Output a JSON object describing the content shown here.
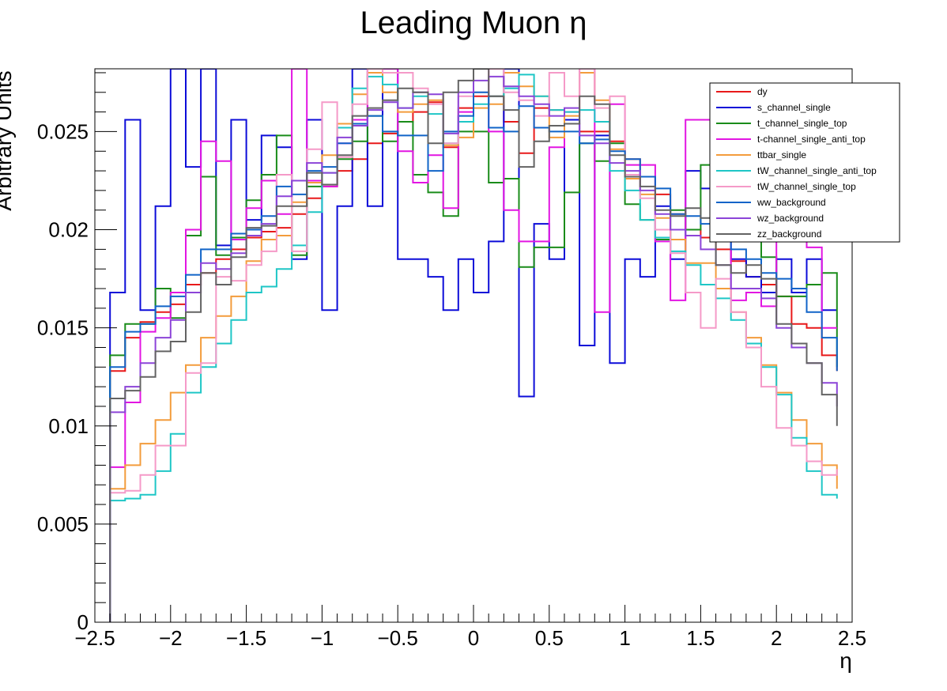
{
  "chart_data": {
    "type": "line",
    "title": "Leading Muon η",
    "xlabel": "η",
    "ylabel": "Arbitrary Units",
    "xlim": [
      -2.5,
      2.5
    ],
    "ylim": [
      0,
      0.0282
    ],
    "x_ticks": [
      -2.5,
      -2,
      -1.5,
      -1,
      -0.5,
      0,
      0.5,
      1,
      1.5,
      2,
      2.5
    ],
    "x_tick_labels": [
      "−2.5",
      "−2",
      "−1.5",
      "−1",
      "−0.5",
      "0",
      "0.5",
      "1",
      "1.5",
      "2",
      "2.5"
    ],
    "y_ticks": [
      0,
      0.005,
      0.01,
      0.015,
      0.02,
      0.025
    ],
    "y_tick_labels": [
      "0",
      "0.005",
      "0.01",
      "0.015",
      "0.02",
      "0.025"
    ],
    "grid": false,
    "legend_position": "top-right",
    "bin_edges": [
      -2.4,
      -2.3,
      -2.2,
      -2.1,
      -2.0,
      -1.9,
      -1.8,
      -1.7,
      -1.6,
      -1.5,
      -1.4,
      -1.3,
      -1.2,
      -1.1,
      -1.0,
      -0.9,
      -0.8,
      -0.7,
      -0.6,
      -0.5,
      -0.4,
      -0.3,
      -0.2,
      -0.1,
      0.0,
      0.1,
      0.2,
      0.3,
      0.4,
      0.5,
      0.6,
      0.7,
      0.8,
      0.9,
      1.0,
      1.1,
      1.2,
      1.3,
      1.4,
      1.5,
      1.6,
      1.7,
      1.8,
      1.9,
      2.0,
      2.1,
      2.2,
      2.3,
      2.4
    ],
    "series": [
      {
        "name": "dy",
        "color": "#e8191a",
        "values": [
          0.0128,
          0.0145,
          0.0153,
          0.0158,
          0.0162,
          0.0172,
          0.0178,
          0.0185,
          0.019,
          0.0196,
          0.0199,
          0.0201,
          0.0208,
          0.0216,
          0.0222,
          0.023,
          0.0236,
          0.0244,
          0.0249,
          0.0255,
          0.026,
          0.0265,
          0.0242,
          0.0262,
          0.0268,
          0.0268,
          0.0255,
          0.0239,
          0.0262,
          0.0261,
          0.0254,
          0.025,
          0.025,
          0.0245,
          0.0236,
          0.0227,
          0.0218,
          0.0208,
          0.02,
          0.0196,
          0.019,
          0.0184,
          0.0176,
          0.0172,
          0.0166,
          0.0152,
          0.015,
          0.0136,
          0.0128
        ]
      },
      {
        "name": "s_channel_single",
        "color": "#0c0cd8",
        "values": [
          0.0168,
          0.0256,
          0.0159,
          0.0212,
          0.0282,
          0.0232,
          0.0282,
          0.0192,
          0.0256,
          0.0205,
          0.0248,
          0.0242,
          0.0185,
          0.0256,
          0.0159,
          0.0212,
          0.0282,
          0.0212,
          0.0282,
          0.0185,
          0.0185,
          0.0176,
          0.0159,
          0.0185,
          0.0168,
          0.0194,
          0.0282,
          0.0115,
          0.0203,
          0.0185,
          0.0256,
          0.0141,
          0.0248,
          0.0132,
          0.0185,
          0.0176,
          0.0212,
          0.0185,
          0.023,
          0.0221,
          0.0194,
          0.0185,
          0.0176,
          0.0168,
          0.0185,
          0.0168,
          0.0185,
          0.0159,
          0.0159
        ]
      },
      {
        "name": "t_channel_single_top",
        "color": "#1a8c1a",
        "values": [
          0.0136,
          0.0152,
          0.0152,
          0.017,
          0.0155,
          0.0197,
          0.0227,
          0.0187,
          0.0196,
          0.0215,
          0.0228,
          0.0248,
          0.0187,
          0.0222,
          0.0223,
          0.0236,
          0.0245,
          0.0258,
          0.0245,
          0.0255,
          0.0228,
          0.0219,
          0.0207,
          0.025,
          0.025,
          0.0224,
          0.0226,
          0.0181,
          0.0191,
          0.0191,
          0.0219,
          0.0244,
          0.0235,
          0.0244,
          0.0213,
          0.0205,
          0.0195,
          0.021,
          0.02,
          0.0233,
          0.0233,
          0.022,
          0.0196,
          0.0186,
          0.0166,
          0.0166,
          0.0172,
          0.0178,
          0.013
        ]
      },
      {
        "name": "t-channel_single_anti_top",
        "color": "#e215e2",
        "values": [
          0.0079,
          0.0112,
          0.0148,
          0.0155,
          0.0168,
          0.02,
          0.0245,
          0.0235,
          0.0195,
          0.0211,
          0.0225,
          0.0208,
          0.0282,
          0.0225,
          0.0222,
          0.0244,
          0.0256,
          0.0282,
          0.0282,
          0.024,
          0.0224,
          0.0238,
          0.0211,
          0.026,
          0.0282,
          0.025,
          0.021,
          0.0194,
          0.0194,
          0.0242,
          0.026,
          0.0282,
          0.0158,
          0.0264,
          0.0233,
          0.0233,
          0.0194,
          0.0164,
          0.0256,
          0.0256,
          0.0241,
          0.0164,
          0.0168,
          0.0161,
          0.0202,
          0.0204,
          0.0191,
          0.015,
          0.015
        ]
      },
      {
        "name": "ttbar_single",
        "color": "#f39c3c",
        "values": [
          0.0068,
          0.008,
          0.0091,
          0.0103,
          0.0117,
          0.0131,
          0.0145,
          0.0156,
          0.0166,
          0.0184,
          0.0195,
          0.0197,
          0.0214,
          0.0224,
          0.0238,
          0.0254,
          0.0269,
          0.028,
          0.027,
          0.026,
          0.0264,
          0.0266,
          0.0243,
          0.0247,
          0.0262,
          0.0264,
          0.028,
          0.0273,
          0.0268,
          0.0247,
          0.0258,
          0.028,
          0.0266,
          0.0241,
          0.0226,
          0.0218,
          0.0206,
          0.0195,
          0.0183,
          0.0183,
          0.017,
          0.0158,
          0.0145,
          0.0131,
          0.0117,
          0.0103,
          0.0091,
          0.008,
          0.0068
        ]
      },
      {
        "name": "tW_channel_single_anti_top",
        "color": "#1ec6c6",
        "values": [
          0.0062,
          0.0063,
          0.0065,
          0.0077,
          0.0096,
          0.0117,
          0.013,
          0.0142,
          0.0154,
          0.0168,
          0.0171,
          0.018,
          0.0192,
          0.0209,
          0.0229,
          0.0252,
          0.0272,
          0.0278,
          0.0274,
          0.0262,
          0.0268,
          0.0259,
          0.0244,
          0.0255,
          0.0264,
          0.0268,
          0.0272,
          0.0279,
          0.0268,
          0.0261,
          0.026,
          0.0261,
          0.0255,
          0.023,
          0.022,
          0.0205,
          0.0196,
          0.0189,
          0.0182,
          0.0172,
          0.0165,
          0.0154,
          0.0142,
          0.013,
          0.0116,
          0.0094,
          0.0077,
          0.0065,
          0.0063
        ]
      },
      {
        "name": "tW_channel_single_top",
        "color": "#f59ac8",
        "values": [
          0.0066,
          0.0067,
          0.0075,
          0.009,
          0.009,
          0.0127,
          0.0132,
          0.0176,
          0.0174,
          0.0182,
          0.0189,
          0.0228,
          0.0189,
          0.0241,
          0.0265,
          0.0237,
          0.0264,
          0.0282,
          0.028,
          0.028,
          0.0272,
          0.0264,
          0.0244,
          0.0268,
          0.027,
          0.0282,
          0.027,
          0.0266,
          0.0258,
          0.028,
          0.0268,
          0.0282,
          0.0262,
          0.0268,
          0.0228,
          0.0216,
          0.02,
          0.0188,
          0.0168,
          0.015,
          0.0175,
          0.0158,
          0.014,
          0.012,
          0.0099,
          0.009,
          0.0082,
          0.0075,
          0.0078
        ]
      },
      {
        "name": "ww_background",
        "color": "#1064c8",
        "values": [
          0.013,
          0.0148,
          0.0152,
          0.0161,
          0.0166,
          0.0177,
          0.019,
          0.019,
          0.0198,
          0.02,
          0.0207,
          0.0222,
          0.0218,
          0.023,
          0.0232,
          0.0244,
          0.0254,
          0.0258,
          0.025,
          0.0248,
          0.0248,
          0.023,
          0.025,
          0.0258,
          0.027,
          0.0252,
          0.025,
          0.0263,
          0.0252,
          0.025,
          0.025,
          0.0244,
          0.0246,
          0.024,
          0.0236,
          0.0227,
          0.0221,
          0.0208,
          0.0207,
          0.0203,
          0.02,
          0.019,
          0.0185,
          0.0178,
          0.0175,
          0.017,
          0.0158,
          0.0145,
          0.0128
        ]
      },
      {
        "name": "wz_background",
        "color": "#8c44d8",
        "values": [
          0.0107,
          0.012,
          0.0132,
          0.0145,
          0.0154,
          0.0168,
          0.0183,
          0.018,
          0.0188,
          0.0197,
          0.0203,
          0.0217,
          0.0225,
          0.0234,
          0.0229,
          0.0247,
          0.0253,
          0.0261,
          0.0265,
          0.0262,
          0.027,
          0.0269,
          0.0249,
          0.027,
          0.0276,
          0.0278,
          0.0273,
          0.0268,
          0.0264,
          0.0258,
          0.0262,
          0.0248,
          0.0244,
          0.0234,
          0.023,
          0.022,
          0.0208,
          0.02,
          0.0197,
          0.019,
          0.0182,
          0.017,
          0.017,
          0.0165,
          0.015,
          0.014,
          0.0132,
          0.0122,
          0.011
        ]
      },
      {
        "name": "zz_background",
        "color": "#636363",
        "values": [
          0.0114,
          0.0118,
          0.0125,
          0.0138,
          0.0143,
          0.0158,
          0.0178,
          0.0172,
          0.0186,
          0.0201,
          0.0202,
          0.0212,
          0.0212,
          0.0229,
          0.0223,
          0.0238,
          0.0258,
          0.0262,
          0.0266,
          0.0272,
          0.027,
          0.0244,
          0.027,
          0.0276,
          0.0282,
          0.0268,
          0.0261,
          0.0232,
          0.0245,
          0.0253,
          0.0254,
          0.0268,
          0.0264,
          0.0238,
          0.0227,
          0.0222,
          0.021,
          0.0207,
          0.0211,
          0.0206,
          0.0182,
          0.0178,
          0.0182,
          0.0175,
          0.0152,
          0.0142,
          0.0132,
          0.0116,
          0.01
        ]
      }
    ]
  }
}
